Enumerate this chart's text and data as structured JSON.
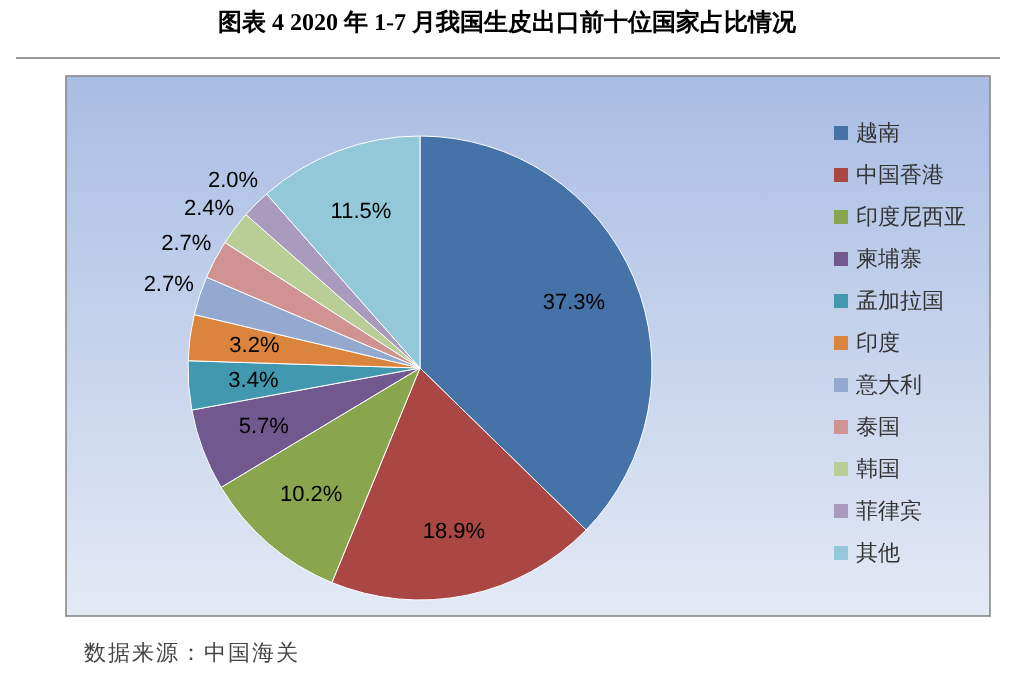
{
  "chart_data": {
    "type": "pie",
    "title": "图表  4 2020 年 1-7 月我国生皮出口前十位国家占比情况",
    "categories": [
      "越南",
      "中国香港",
      "印度尼西亚",
      "柬埔寨",
      "孟加拉国",
      "印度",
      "意大利",
      "泰国",
      "韩国",
      "菲律宾",
      "其他"
    ],
    "values": [
      37.3,
      18.9,
      10.2,
      5.7,
      3.4,
      3.2,
      2.7,
      2.7,
      2.4,
      2.0,
      11.5
    ],
    "value_labels": [
      "37.3%",
      "18.9%",
      "10.2%",
      "5.7%",
      "3.4%",
      "3.2%",
      "2.7%",
      "2.7%",
      "2.4%",
      "2.0%",
      "11.5%"
    ],
    "colors": [
      "#4572a7",
      "#aa4643",
      "#89a54e",
      "#71588f",
      "#4198af",
      "#db843d",
      "#93a9cf",
      "#d19392",
      "#b9cd96",
      "#a99bbd",
      "#92c8d8"
    ],
    "legend": "right",
    "annotations": [
      "数据来源：中国海关"
    ]
  }
}
